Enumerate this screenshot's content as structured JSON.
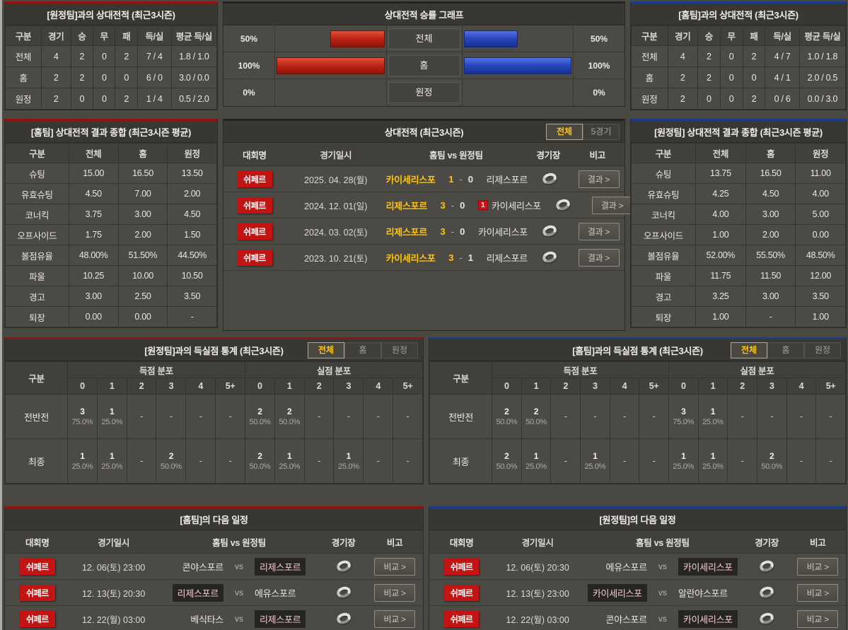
{
  "colors": {
    "home_accent": "#8f1310",
    "away_accent": "#1d3c88",
    "win_yellow": "#ffc40d",
    "league_badge_red": "#c31414",
    "home_bar_red": "#c02717",
    "away_bar_blue": "#2a49c0"
  },
  "record_vs_away": {
    "title": "[원정팀]과의 상대전적 (최근3시즌)",
    "columns": [
      "구분",
      "경기",
      "승",
      "무",
      "패",
      "득/실",
      "평균 득/실"
    ],
    "rows": [
      {
        "label": "전체",
        "cells": [
          "4",
          "2",
          "0",
          "2",
          "7 / 4",
          "1.8 / 1.0"
        ]
      },
      {
        "label": "홈",
        "cells": [
          "2",
          "2",
          "0",
          "0",
          "6 / 0",
          "3.0 / 0.0"
        ]
      },
      {
        "label": "원정",
        "cells": [
          "2",
          "0",
          "0",
          "2",
          "1 / 4",
          "0.5 / 2.0"
        ]
      }
    ]
  },
  "winrate_graph": {
    "title": "상대전적 승률 그래프",
    "rows": [
      {
        "label": "전체",
        "home_pct_label": "50%",
        "home_value": 50,
        "away_pct_label": "50%",
        "away_value": 50
      },
      {
        "label": "홈",
        "home_pct_label": "100%",
        "home_value": 100,
        "away_pct_label": "100%",
        "away_value": 100
      },
      {
        "label": "원정",
        "home_pct_label": "0%",
        "home_value": 0,
        "away_pct_label": "0%",
        "away_value": 0
      }
    ]
  },
  "record_vs_home": {
    "title": "[홈팀]과의 상대전적 (최근3시즌)",
    "columns": [
      "구분",
      "경기",
      "승",
      "무",
      "패",
      "득/실",
      "평균 득/실"
    ],
    "rows": [
      {
        "label": "전체",
        "cells": [
          "4",
          "2",
          "0",
          "2",
          "4 / 7",
          "1.0 / 1.8"
        ]
      },
      {
        "label": "홈",
        "cells": [
          "2",
          "2",
          "0",
          "0",
          "4 / 1",
          "2.0 / 0.5"
        ]
      },
      {
        "label": "원정",
        "cells": [
          "2",
          "0",
          "0",
          "2",
          "0 / 6",
          "0.0 / 3.0"
        ]
      }
    ]
  },
  "summary_home": {
    "title": "[홈팀] 상대전적 결과 종합 (최근3시즌 평균)",
    "columns": [
      "구분",
      "전체",
      "홈",
      "원정"
    ],
    "rows": [
      {
        "label": "슈팅",
        "cells": [
          "15.00",
          "16.50",
          "13.50"
        ]
      },
      {
        "label": "유효슈팅",
        "cells": [
          "4.50",
          "7.00",
          "2.00"
        ]
      },
      {
        "label": "코너킥",
        "cells": [
          "3.75",
          "3.00",
          "4.50"
        ]
      },
      {
        "label": "오프사이드",
        "cells": [
          "1.75",
          "2.00",
          "1.50"
        ]
      },
      {
        "label": "볼점유율",
        "cells": [
          "48.00%",
          "51.50%",
          "44.50%"
        ]
      },
      {
        "label": "파울",
        "cells": [
          "10.25",
          "10.00",
          "10.50"
        ]
      },
      {
        "label": "경고",
        "cells": [
          "3.00",
          "2.50",
          "3.50"
        ]
      },
      {
        "label": "퇴장",
        "cells": [
          "0.00",
          "0.00",
          "-"
        ]
      }
    ]
  },
  "summary_away": {
    "title": "[원정팀] 상대전적 결과 종합 (최근3시즌 평균)",
    "columns": [
      "구분",
      "전체",
      "홈",
      "원정"
    ],
    "rows": [
      {
        "label": "슈팅",
        "cells": [
          "13.75",
          "16.50",
          "11.00"
        ]
      },
      {
        "label": "유효슈팅",
        "cells": [
          "4.25",
          "4.50",
          "4.00"
        ]
      },
      {
        "label": "코너킥",
        "cells": [
          "4.00",
          "3.00",
          "5.00"
        ]
      },
      {
        "label": "오프사이드",
        "cells": [
          "1.00",
          "2.00",
          "0.00"
        ]
      },
      {
        "label": "볼점유율",
        "cells": [
          "52.00%",
          "55.50%",
          "48.50%"
        ]
      },
      {
        "label": "파울",
        "cells": [
          "11.75",
          "11.50",
          "12.00"
        ]
      },
      {
        "label": "경고",
        "cells": [
          "3.25",
          "3.00",
          "3.50"
        ]
      },
      {
        "label": "퇴장",
        "cells": [
          "1.00",
          "-",
          "1.00"
        ]
      }
    ]
  },
  "h2h": {
    "title": "상대전적 (최근3시즌)",
    "tabs": [
      {
        "label": "전체",
        "selected": true
      },
      {
        "label": "5경기",
        "selected": false
      }
    ],
    "columns": {
      "league": "대회명",
      "date": "경기일시",
      "teams": "홈팀 vs 원정팀",
      "stadium": "경기장",
      "note": "비고"
    },
    "button": "결과 >",
    "rows": [
      {
        "league": "쉬페르",
        "date": "2025. 04. 28(월)",
        "home": "카이세리스포",
        "home_score": "1",
        "away_score": "0",
        "away": "리제스포르",
        "winner": "home",
        "red_card": ""
      },
      {
        "league": "쉬페르",
        "date": "2024. 12. 01(일)",
        "home": "리제스포르",
        "home_score": "3",
        "away_score": "0",
        "away": "카이세리스포",
        "winner": "home",
        "red_card": "1"
      },
      {
        "league": "쉬페르",
        "date": "2024. 03. 02(토)",
        "home": "리제스포르",
        "home_score": "3",
        "away_score": "0",
        "away": "카이세리스포",
        "winner": "home",
        "red_card": ""
      },
      {
        "league": "쉬페르",
        "date": "2023. 10. 21(토)",
        "home": "카이세리스포",
        "home_score": "3",
        "away_score": "1",
        "away": "리제스포르",
        "winner": "home",
        "red_card": ""
      }
    ]
  },
  "goal_stats_left": {
    "title": "[원정팀]과의 득실점 통계 (최근3시즌)",
    "tabs": [
      {
        "label": "전체",
        "selected": true
      },
      {
        "label": "홈",
        "selected": false
      },
      {
        "label": "원정",
        "selected": false
      }
    ],
    "col_label": "구분",
    "groups": [
      "득점 분포",
      "실점 분포"
    ],
    "bins": [
      "0",
      "1",
      "2",
      "3",
      "4",
      "5+"
    ],
    "rows": [
      {
        "label": "전반전",
        "score": [
          [
            "3",
            "75.0%"
          ],
          [
            "1",
            "25.0%"
          ],
          null,
          null,
          null,
          null
        ],
        "concede": [
          [
            "2",
            "50.0%"
          ],
          [
            "2",
            "50.0%"
          ],
          null,
          null,
          null,
          null
        ]
      },
      {
        "label": "최종",
        "score": [
          [
            "1",
            "25.0%"
          ],
          [
            "1",
            "25.0%"
          ],
          null,
          [
            "2",
            "50.0%"
          ],
          null,
          null
        ],
        "concede": [
          [
            "2",
            "50.0%"
          ],
          [
            "1",
            "25.0%"
          ],
          null,
          [
            "1",
            "25.0%"
          ],
          null,
          null
        ]
      }
    ]
  },
  "goal_stats_right": {
    "title": "[홈팀]과의 득실점 통계 (최근3시즌)",
    "tabs": [
      {
        "label": "전체",
        "selected": true
      },
      {
        "label": "홈",
        "selected": false
      },
      {
        "label": "원정",
        "selected": false
      }
    ],
    "col_label": "구분",
    "groups": [
      "득점 분포",
      "실점 분포"
    ],
    "bins": [
      "0",
      "1",
      "2",
      "3",
      "4",
      "5+"
    ],
    "rows": [
      {
        "label": "전반전",
        "score": [
          [
            "2",
            "50.0%"
          ],
          [
            "2",
            "50.0%"
          ],
          null,
          null,
          null,
          null
        ],
        "concede": [
          [
            "3",
            "75.0%"
          ],
          [
            "1",
            "25.0%"
          ],
          null,
          null,
          null,
          null
        ]
      },
      {
        "label": "최종",
        "score": [
          [
            "2",
            "50.0%"
          ],
          [
            "1",
            "25.0%"
          ],
          null,
          [
            "1",
            "25.0%"
          ],
          null,
          null
        ],
        "concede": [
          [
            "1",
            "25.0%"
          ],
          [
            "1",
            "25.0%"
          ],
          null,
          [
            "2",
            "50.0%"
          ],
          null,
          null
        ]
      }
    ]
  },
  "schedule_home": {
    "title": "[홈팀]의 다음 일정",
    "columns": {
      "league": "대회명",
      "date": "경기일시",
      "teams": "홈팀 vs 원정팀",
      "stadium": "경기장",
      "note": "비고"
    },
    "button": "비교 >",
    "vs_label": "vs",
    "rows": [
      {
        "league": "쉬페르",
        "date": "12. 06(토) 23:00",
        "home": "콘야스포르",
        "away": "리제스포르",
        "highlight": "away"
      },
      {
        "league": "쉬페르",
        "date": "12. 13(토) 20:30",
        "home": "리제스포르",
        "away": "에유스포르",
        "highlight": "home"
      },
      {
        "league": "쉬페르",
        "date": "12. 22(월) 03:00",
        "home": "베식타스",
        "away": "리제스포르",
        "highlight": "away"
      }
    ]
  },
  "schedule_away": {
    "title": "[원정팀]의 다음 일정",
    "columns": {
      "league": "대회명",
      "date": "경기일시",
      "teams": "홈팀 vs 원정팀",
      "stadium": "경기장",
      "note": "비고"
    },
    "button": "비교 >",
    "vs_label": "vs",
    "rows": [
      {
        "league": "쉬페르",
        "date": "12. 06(토) 20:30",
        "home": "에유스포르",
        "away": "카이세리스포",
        "highlight": "away"
      },
      {
        "league": "쉬페르",
        "date": "12. 13(토) 23:00",
        "home": "카이세리스포",
        "away": "알란야스포르",
        "highlight": "home"
      },
      {
        "league": "쉬페르",
        "date": "12. 22(월) 03:00",
        "home": "콘야스포르",
        "away": "카이세리스포",
        "highlight": "away"
      }
    ]
  }
}
